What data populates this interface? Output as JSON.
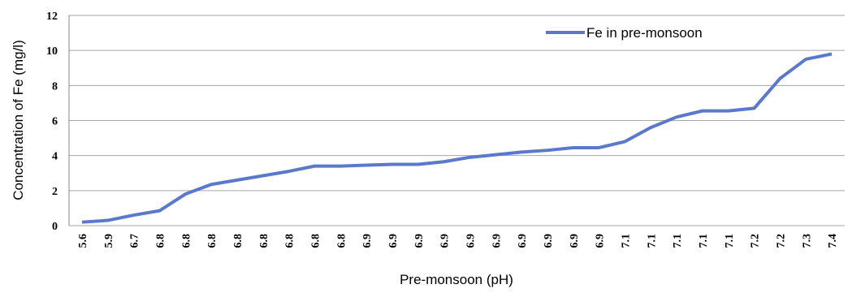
{
  "chart_data": {
    "type": "line",
    "x_label": "Pre-monsoon (pH)",
    "y_label": "Concentration of Fe (mg/l)",
    "categories": [
      "5.6",
      "5.9",
      "6.7",
      "6.8",
      "6.8",
      "6.8",
      "6.8",
      "6.8",
      "6.8",
      "6.8",
      "6.8",
      "6.9",
      "6.9",
      "6.9",
      "6.9",
      "6.9",
      "6.9",
      "6.9",
      "6.9",
      "6.9",
      "6.9",
      "7.1",
      "7.1",
      "7.1",
      "7.1",
      "7.1",
      "7.2",
      "7.2",
      "7.3",
      "7.4"
    ],
    "series": [
      {
        "name": "Fe in pre-monsoon",
        "color": "#5b79cc",
        "values": [
          0.2,
          0.3,
          0.6,
          0.85,
          1.8,
          2.35,
          2.6,
          2.85,
          3.1,
          3.4,
          3.4,
          3.45,
          3.5,
          3.5,
          3.65,
          3.9,
          4.05,
          4.2,
          4.3,
          4.45,
          4.45,
          4.8,
          5.6,
          6.2,
          6.55,
          6.55,
          6.7,
          8.4,
          9.5,
          9.8
        ]
      }
    ],
    "ylim": [
      0,
      12
    ],
    "yticks": [
      0,
      2,
      4,
      6,
      8,
      10,
      12
    ],
    "grid": true,
    "legend": "top-right"
  }
}
